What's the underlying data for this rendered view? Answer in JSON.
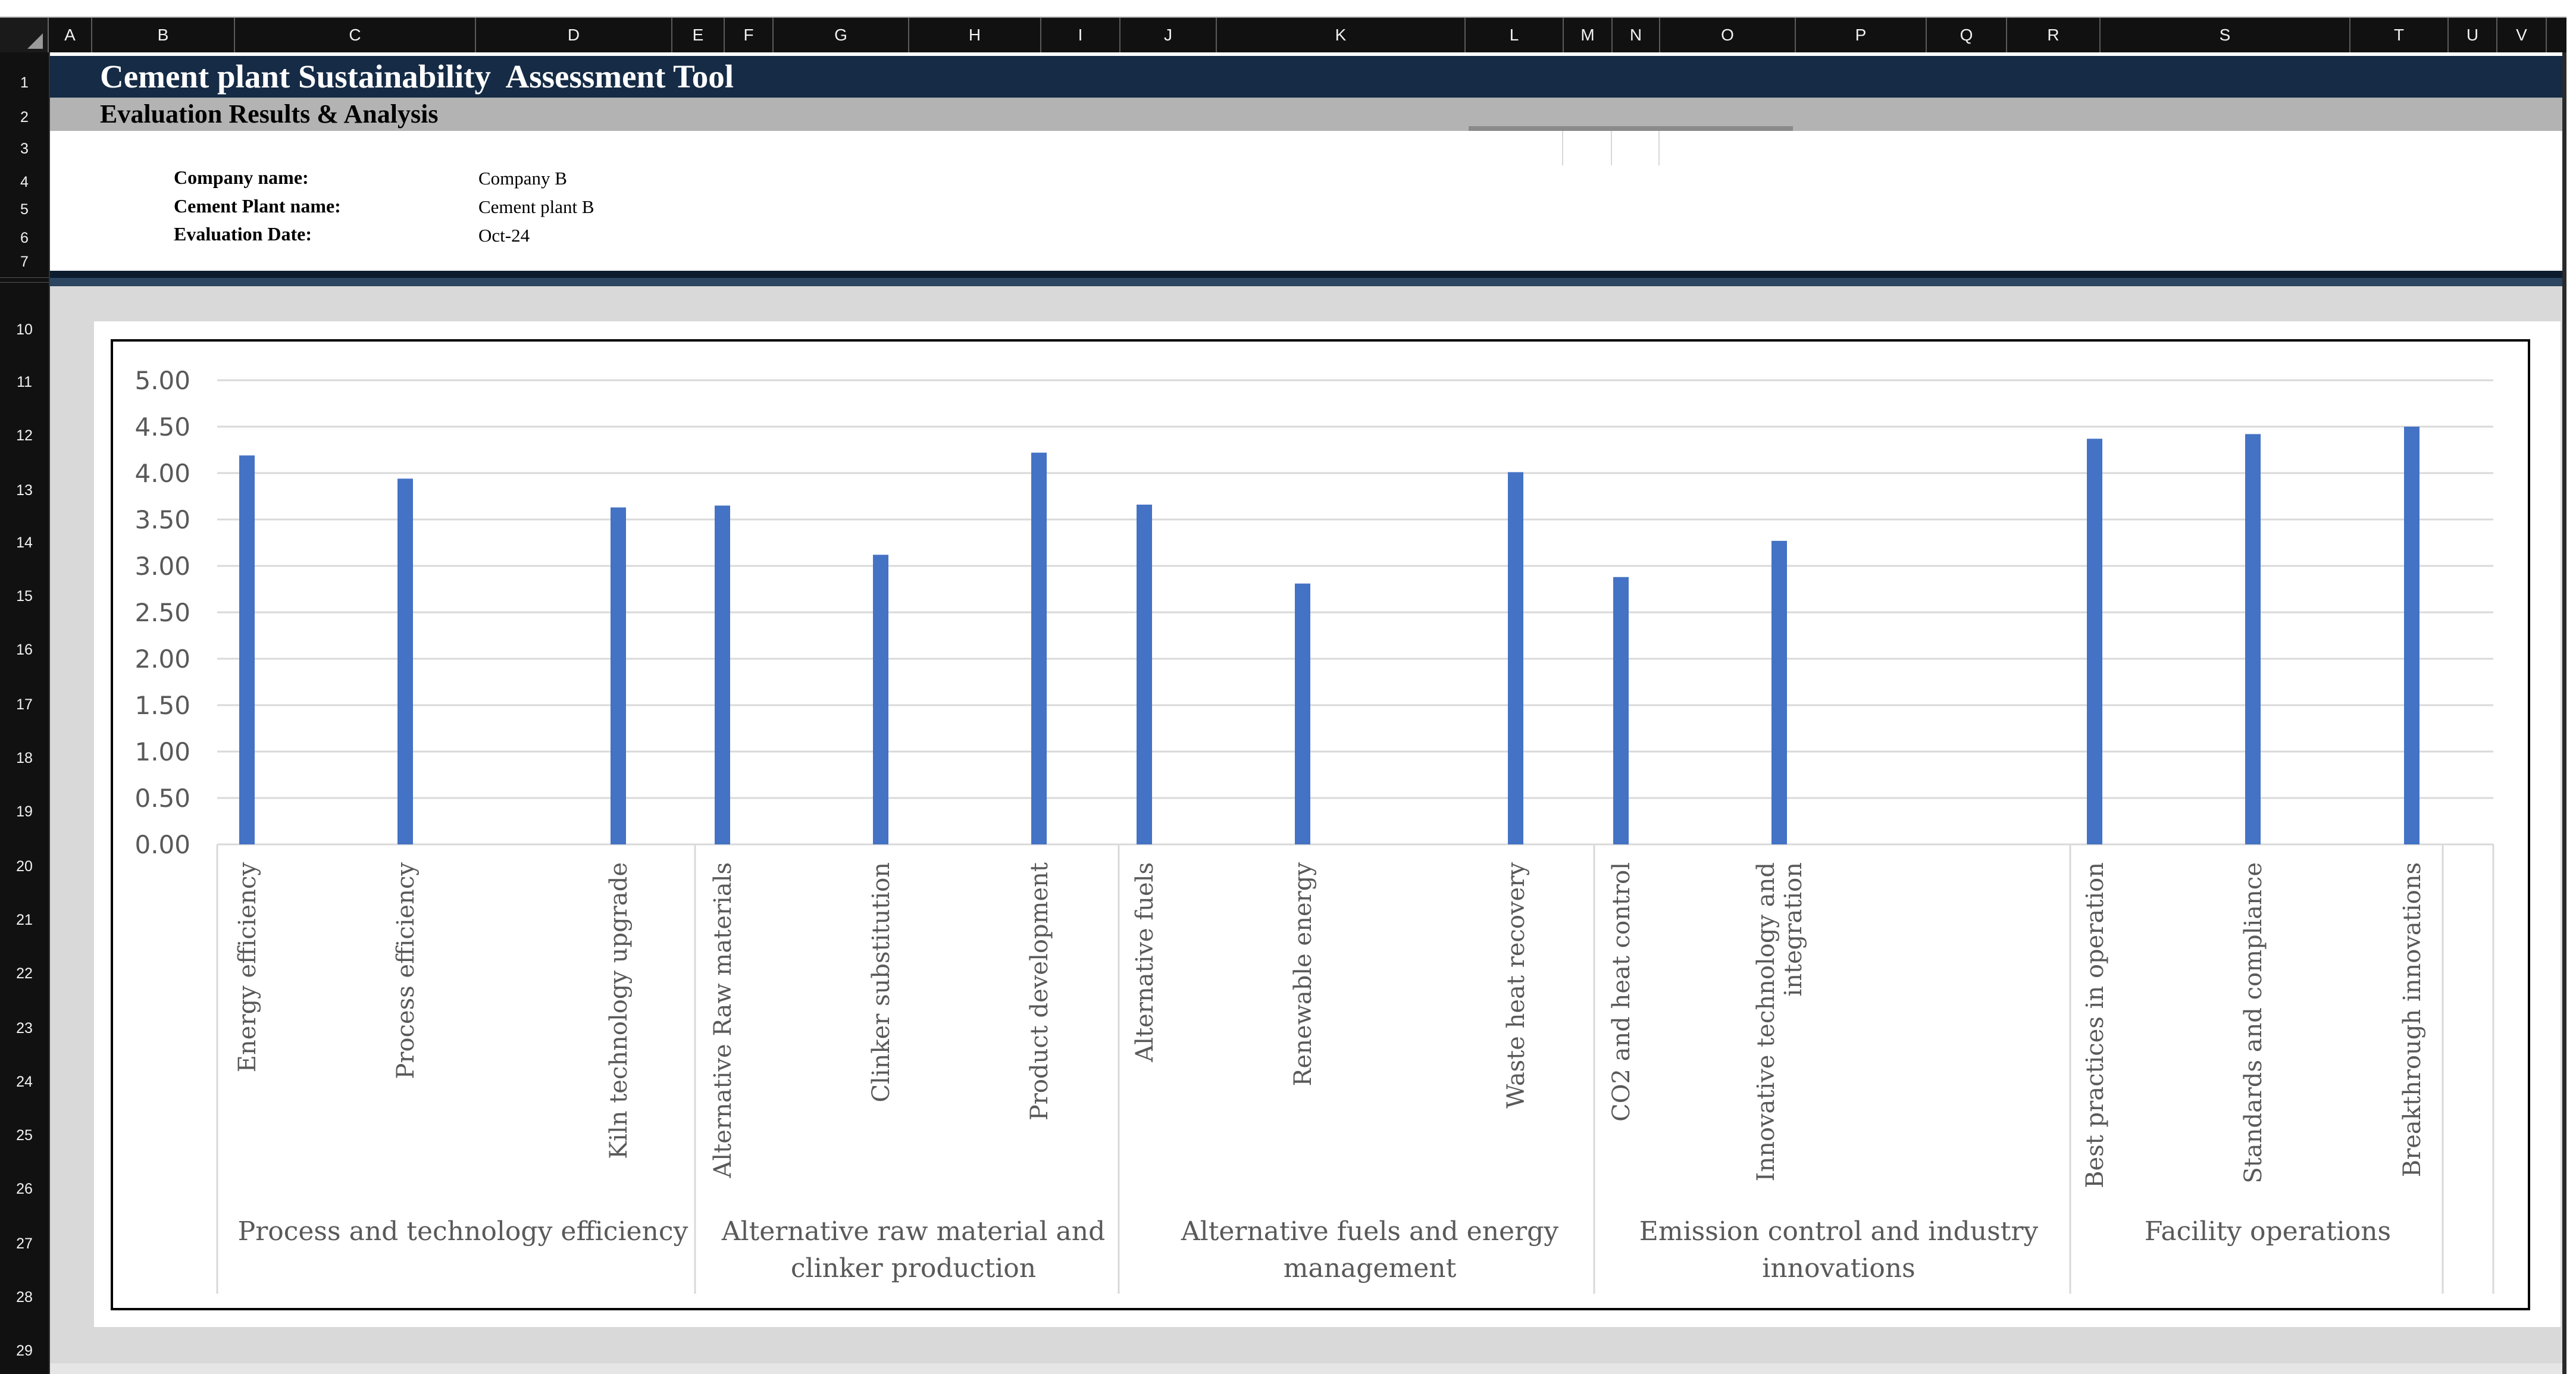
{
  "spreadsheet": {
    "column_letters": [
      "A",
      "B",
      "C",
      "D",
      "E",
      "F",
      "G",
      "H",
      "I",
      "J",
      "K",
      "L",
      "M",
      "N",
      "O",
      "P",
      "Q",
      "R",
      "S",
      "T",
      "U",
      "V"
    ],
    "row_numbers": [
      "1",
      "2",
      "3",
      "4",
      "5",
      "6",
      "7",
      "10",
      "11",
      "12",
      "13",
      "14",
      "15",
      "16",
      "17",
      "18",
      "19",
      "20",
      "21",
      "22",
      "23",
      "24",
      "25",
      "26",
      "27",
      "28",
      "29"
    ]
  },
  "header": {
    "title": "Cement plant Sustainability  Assessment Tool",
    "subtitle": "Evaluation Results & Analysis"
  },
  "info": {
    "company_label": "Company name:",
    "company_value": "Company B",
    "plant_label": "Cement Plant name:",
    "plant_value": "Cement plant B",
    "date_label": "Evaluation Date:",
    "date_value": "Oct-24"
  },
  "chart_data": {
    "type": "bar",
    "title": "",
    "xlabel": "",
    "ylabel": "",
    "ylim": [
      0,
      5
    ],
    "yticks": [
      "0.00",
      "0.50",
      "1.00",
      "1.50",
      "2.00",
      "2.50",
      "3.00",
      "3.50",
      "4.00",
      "4.50",
      "5.00"
    ],
    "grid": true,
    "legend": "none",
    "bar_color": "#4472c4",
    "categories": [
      "Energy efficiency",
      "Process efficiency",
      "Kiln technology upgrade",
      "Alternative Raw materials",
      "Clinker substitution",
      "Product development",
      "Alternative fuels",
      "Renewable energy",
      "Waste heat recovery",
      "CO2 and heat control",
      "Innovative technology and integration",
      "Best practices in operation",
      "Standards and compliance",
      "Breakthrough innovations"
    ],
    "values": [
      4.19,
      3.94,
      3.63,
      3.65,
      3.12,
      4.22,
      3.66,
      2.81,
      4.01,
      2.88,
      3.27,
      4.37,
      4.42,
      4.5
    ],
    "groups": [
      {
        "name": "Process and technology efficiency",
        "members": [
          0,
          1,
          2
        ]
      },
      {
        "name": "Alternative raw material and clinker production",
        "members": [
          3,
          4,
          5
        ]
      },
      {
        "name": "Alternative fuels and energy management",
        "members": [
          6,
          7,
          8
        ]
      },
      {
        "name": "Emission control and industry innovations",
        "members": [
          9,
          10
        ]
      },
      {
        "name": "Facility operations",
        "members": [
          11,
          12,
          13
        ]
      }
    ]
  }
}
